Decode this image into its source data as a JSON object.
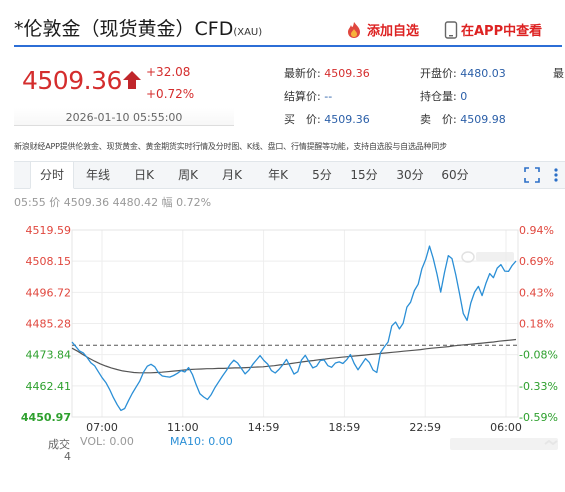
{
  "header": {
    "title": "*伦敦金（现货黄金）CFD",
    "subtitle": "(XAU)",
    "add_favorite_label": "添加自选",
    "app_link_label": "在APP中查看"
  },
  "quote": {
    "price": "4509.36",
    "change": "+32.08",
    "change_pct": "+0.72%",
    "datetime": "2026-01-10 05:55:00",
    "fields": [
      {
        "label": "最新价:",
        "value": "4509.36",
        "tone": "red"
      },
      {
        "label": "开盘价:",
        "value": "4480.03",
        "tone": "blue"
      },
      {
        "label": "结算价:",
        "value": "--",
        "tone": "blue"
      },
      {
        "label": "持仓量:",
        "value": "0",
        "tone": "blue"
      },
      {
        "label": "买　价:",
        "value": "4509.36",
        "tone": "blue"
      },
      {
        "label": "卖　价:",
        "value": "4509.98",
        "tone": "blue"
      }
    ],
    "extra_label": "最"
  },
  "notice": "新浪财经APP提供伦敦金、现货黄金、黄金期货实时行情及分时图、K线、盘口、行情提醒等功能，支持自选股与自选品种同步",
  "tabs": [
    "分时",
    "年线",
    "日K",
    "周K",
    "月K",
    "年K",
    "5分",
    "15分",
    "30分",
    "60分"
  ],
  "info_row": "05:55  价  4509.36  4480.42  幅  0.72%",
  "colors": {
    "up": "#e0473e",
    "down": "#2ea02e",
    "line": "#2b8fd6",
    "avg": "#555555",
    "accent": "#2c6ed6"
  },
  "chart_data": {
    "type": "line",
    "y_left_ticks": [
      "4519.59",
      "4508.15",
      "4496.72",
      "4485.28",
      "4473.84",
      "4462.41",
      "4450.97"
    ],
    "y_right_ticks": [
      "0.94%",
      "0.69%",
      "0.43%",
      "0.18%",
      "-0.08%",
      "-0.33%",
      "-0.59%"
    ],
    "x_ticks": [
      "07:00",
      "11:00",
      "14:59",
      "18:59",
      "22:59",
      "06:00"
    ],
    "ylim": [
      4450.97,
      4519.59
    ],
    "prev_close": 4477.28,
    "series": [
      {
        "values": [
          4478.5,
          4476.8,
          4475.2,
          4474.5,
          4472.8,
          4470.9,
          4469.8,
          4467.6,
          4465.4,
          4463.6,
          4461.1,
          4458.1,
          4455.5,
          4453.4,
          4454.1,
          4456.9,
          4459.6,
          4461.9,
          4464.1,
          4467.4,
          4469.6,
          4470.3,
          4469.4,
          4467.2,
          4466.0,
          4465.8,
          4465.6,
          4466.2,
          4467.0,
          4468.0,
          4467.5,
          4469.1,
          4466.6,
          4462.8,
          4459.5,
          4458.3,
          4457.4,
          4459.2,
          4461.8,
          4463.9,
          4466.0,
          4468.0,
          4470.2,
          4471.8,
          4470.8,
          4468.8,
          4466.8,
          4468.1,
          4470.2,
          4471.9,
          4473.5,
          4471.7,
          4470.4,
          4468.0,
          4467.1,
          4468.4,
          4470.1,
          4472.1,
          4469.5,
          4466.7,
          4467.6,
          4471.9,
          4473.6,
          4471.2,
          4469.0,
          4469.6,
          4471.7,
          4471.9,
          4469.8,
          4469.2,
          4470.8,
          4471.2,
          4470.6,
          4472.0,
          4473.9,
          4470.6,
          4468.3,
          4470.3,
          4472.4,
          4471.0,
          4468.2,
          4467.3,
          4474.6,
          4476.7,
          4478.5,
          4484.4,
          4485.8,
          4483.3,
          4485.3,
          4491.3,
          4493.1,
          4497.4,
          4499.7,
          4505.4,
          4508.8,
          4513.7,
          4509.2,
          4503.4,
          4496.8,
          4504.0,
          4510.2,
          4509.1,
          4503.1,
          4496.1,
          4488.9,
          4486.4,
          4492.8,
          4496.8,
          4498.9,
          4495.5,
          4500.0,
          4503.6,
          4502.1,
          4505.6,
          4506.9,
          4504.5,
          4504.4,
          4506.6,
          4508.2
        ],
        "name": ""
      },
      {
        "values": [
          4476.2,
          4475.1,
          4473.8,
          4472.6,
          4471.5,
          4470.5,
          4469.7,
          4469.0,
          4468.4,
          4467.9,
          4467.6,
          4467.3,
          4467.2,
          4467.2,
          4467.2,
          4467.3,
          4467.4,
          4467.6,
          4467.8,
          4468.0,
          4468.2,
          4468.4,
          4468.5,
          4468.6,
          4468.7,
          4468.7,
          4468.8,
          4468.8,
          4468.9,
          4469.0,
          4469.0,
          4469.1,
          4469.2,
          4469.3,
          4469.4,
          4469.6,
          4469.8,
          4470.1,
          4470.3,
          4470.6,
          4470.9,
          4471.2,
          4471.5,
          4471.7,
          4472.0,
          4472.2,
          4472.5,
          4472.7,
          4472.9,
          4473.1,
          4473.3,
          4473.5,
          4473.7,
          4473.9,
          4474.1,
          4474.3,
          4474.5,
          4474.7,
          4474.9,
          4475.1,
          4475.3,
          4475.5,
          4475.7,
          4476.0,
          4476.2,
          4476.4,
          4476.6,
          4476.8,
          4477.1,
          4477.3,
          4477.5,
          4477.7,
          4477.9,
          4478.1,
          4478.3,
          4478.5,
          4478.8,
          4479.0,
          4479.2,
          4479.4
        ],
        "name": ""
      }
    ]
  },
  "volume": {
    "label": "成交",
    "vol_text": "VOL: 0.00",
    "ma_text": "MA10: 0.00",
    "count": "4"
  }
}
